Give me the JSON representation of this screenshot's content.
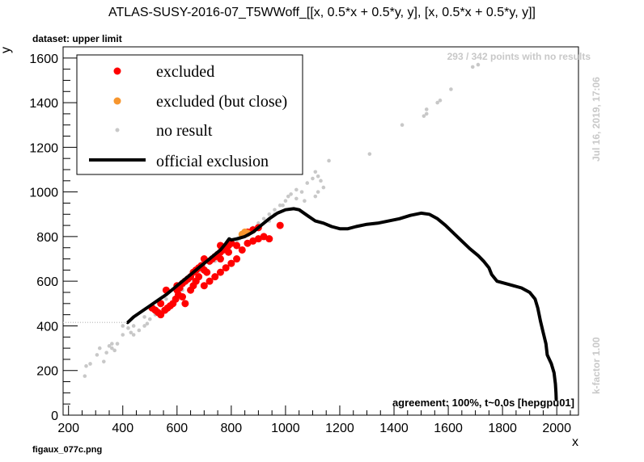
{
  "chart_data": {
    "type": "scatter",
    "title": "ATLAS-SUSY-2016-07_T5WWoff_[[x, 0.5*x + 0.5*y, y], [x, 0.5*x + 0.5*y, y]]",
    "subtitle": "dataset: upper limit",
    "xlabel": "x",
    "ylabel": "y",
    "xlim": [
      180,
      2080
    ],
    "ylim": [
      0,
      1650
    ],
    "x_ticks": [
      200,
      400,
      600,
      800,
      1000,
      1200,
      1400,
      1600,
      1800,
      2000
    ],
    "y_ticks": [
      0,
      200,
      400,
      600,
      800,
      1000,
      1200,
      1400,
      1600
    ],
    "grid": false,
    "legend_position": "top-left",
    "annotations": {
      "no_results": "293 / 342 points with no results",
      "agreement": "agreement: 100%, t~0.0s [hepgpu01]",
      "timestamp": "Jul 16, 2019, 17:06",
      "kfactor": "k-factor 1.00",
      "filename": "figaux_077c.png"
    },
    "colors": {
      "excluded": "#ff0000",
      "close": "#f7962e",
      "noresult": "#c8c8c8",
      "official": "#000000"
    },
    "series": [
      {
        "name": "excluded",
        "kind": "points",
        "points": [
          [
            508,
            480
          ],
          [
            520,
            470
          ],
          [
            530,
            460
          ],
          [
            540,
            450
          ],
          [
            555,
            470
          ],
          [
            565,
            480
          ],
          [
            575,
            490
          ],
          [
            585,
            500
          ],
          [
            595,
            520
          ],
          [
            605,
            540
          ],
          [
            540,
            500
          ],
          [
            600,
            560
          ],
          [
            610,
            570
          ],
          [
            620,
            590
          ],
          [
            630,
            600
          ],
          [
            640,
            610
          ],
          [
            650,
            620
          ],
          [
            660,
            640
          ],
          [
            670,
            650
          ],
          [
            680,
            660
          ],
          [
            690,
            670
          ],
          [
            700,
            650
          ],
          [
            710,
            640
          ],
          [
            720,
            690
          ],
          [
            730,
            700
          ],
          [
            740,
            710
          ],
          [
            750,
            720
          ],
          [
            760,
            730
          ],
          [
            770,
            740
          ],
          [
            780,
            750
          ],
          [
            790,
            760
          ],
          [
            800,
            770
          ],
          [
            650,
            560
          ],
          [
            660,
            580
          ],
          [
            670,
            600
          ],
          [
            620,
            530
          ],
          [
            630,
            500
          ],
          [
            700,
            580
          ],
          [
            720,
            600
          ],
          [
            740,
            620
          ],
          [
            760,
            640
          ],
          [
            780,
            660
          ],
          [
            800,
            680
          ],
          [
            820,
            700
          ],
          [
            840,
            740
          ],
          [
            860,
            770
          ],
          [
            880,
            780
          ],
          [
            900,
            790
          ],
          [
            920,
            800
          ],
          [
            940,
            790
          ],
          [
            860,
            820
          ],
          [
            880,
            830
          ],
          [
            900,
            840
          ],
          [
            980,
            850
          ],
          [
            700,
            700
          ],
          [
            760,
            700
          ],
          [
            790,
            730
          ],
          [
            820,
            760
          ],
          [
            760,
            760
          ],
          [
            600,
            580
          ],
          [
            560,
            560
          ],
          [
            680,
            620
          ]
        ]
      },
      {
        "name": "excluded (but close)",
        "kind": "points",
        "points": [
          [
            840,
            810
          ],
          [
            850,
            820
          ],
          [
            860,
            815
          ]
        ]
      },
      {
        "name": "no result",
        "kind": "points",
        "points": [
          [
            260,
            175
          ],
          [
            265,
            220
          ],
          [
            280,
            230
          ],
          [
            305,
            270
          ],
          [
            315,
            300
          ],
          [
            330,
            240
          ],
          [
            340,
            280
          ],
          [
            350,
            310
          ],
          [
            360,
            300
          ],
          [
            370,
            290
          ],
          [
            380,
            320
          ],
          [
            400,
            400
          ],
          [
            420,
            390
          ],
          [
            430,
            370
          ],
          [
            440,
            360
          ],
          [
            460,
            380
          ],
          [
            480,
            400
          ],
          [
            490,
            410
          ],
          [
            500,
            430
          ],
          [
            520,
            450
          ],
          [
            560,
            480
          ],
          [
            590,
            520
          ],
          [
            620,
            560
          ],
          [
            660,
            600
          ],
          [
            700,
            640
          ],
          [
            740,
            690
          ],
          [
            780,
            740
          ],
          [
            820,
            780
          ],
          [
            850,
            810
          ],
          [
            880,
            840
          ],
          [
            900,
            860
          ],
          [
            920,
            880
          ],
          [
            940,
            900
          ],
          [
            960,
            920
          ],
          [
            980,
            940
          ],
          [
            1000,
            960
          ],
          [
            1010,
            980
          ],
          [
            1020,
            990
          ],
          [
            1040,
            970
          ],
          [
            1060,
            1000
          ],
          [
            1080,
            1040
          ],
          [
            1100,
            1060
          ],
          [
            1110,
            1090
          ],
          [
            1120,
            1070
          ],
          [
            1130,
            1050
          ],
          [
            1140,
            1020
          ],
          [
            1160,
            1140
          ],
          [
            1040,
            1010
          ],
          [
            1070,
            960
          ],
          [
            1120,
            1000
          ],
          [
            1310,
            1170
          ],
          [
            1430,
            1300
          ],
          [
            1520,
            1350
          ],
          [
            1510,
            1340
          ],
          [
            1520,
            1370
          ],
          [
            1570,
            1410
          ],
          [
            1560,
            1400
          ],
          [
            1610,
            1460
          ],
          [
            1690,
            1560
          ],
          [
            1710,
            1570
          ],
          [
            1110,
            980
          ],
          [
            990,
            940
          ],
          [
            960,
            900
          ],
          [
            940,
            870
          ],
          [
            870,
            820
          ],
          [
            830,
            790
          ],
          [
            760,
            720
          ],
          [
            720,
            680
          ],
          [
            680,
            640
          ],
          [
            640,
            600
          ],
          [
            600,
            560
          ],
          [
            560,
            520
          ],
          [
            520,
            480
          ],
          [
            480,
            440
          ],
          [
            440,
            400
          ],
          [
            400,
            360
          ],
          [
            360,
            320
          ]
        ]
      },
      {
        "name": "official exclusion",
        "kind": "line",
        "points": [
          [
            418,
            415
          ],
          [
            440,
            440
          ],
          [
            470,
            465
          ],
          [
            500,
            490
          ],
          [
            530,
            515
          ],
          [
            560,
            540
          ],
          [
            590,
            570
          ],
          [
            620,
            600
          ],
          [
            650,
            630
          ],
          [
            680,
            660
          ],
          [
            710,
            690
          ],
          [
            740,
            720
          ],
          [
            760,
            740
          ],
          [
            780,
            770
          ],
          [
            792,
            790
          ],
          [
            800,
            785
          ],
          [
            820,
            790
          ],
          [
            850,
            800
          ],
          [
            880,
            820
          ],
          [
            910,
            850
          ],
          [
            940,
            880
          ],
          [
            970,
            905
          ],
          [
            1000,
            920
          ],
          [
            1030,
            925
          ],
          [
            1050,
            920
          ],
          [
            1080,
            895
          ],
          [
            1110,
            870
          ],
          [
            1140,
            860
          ],
          [
            1170,
            845
          ],
          [
            1200,
            835
          ],
          [
            1230,
            835
          ],
          [
            1260,
            845
          ],
          [
            1300,
            855
          ],
          [
            1340,
            860
          ],
          [
            1380,
            870
          ],
          [
            1420,
            880
          ],
          [
            1460,
            895
          ],
          [
            1500,
            905
          ],
          [
            1530,
            900
          ],
          [
            1560,
            880
          ],
          [
            1590,
            850
          ],
          [
            1620,
            815
          ],
          [
            1650,
            780
          ],
          [
            1680,
            745
          ],
          [
            1710,
            715
          ],
          [
            1730,
            690
          ],
          [
            1750,
            660
          ],
          [
            1760,
            630
          ],
          [
            1780,
            600
          ],
          [
            1810,
            590
          ],
          [
            1840,
            580
          ],
          [
            1870,
            570
          ],
          [
            1900,
            550
          ],
          [
            1920,
            520
          ],
          [
            1930,
            480
          ],
          [
            1940,
            420
          ],
          [
            1950,
            370
          ],
          [
            1960,
            320
          ],
          [
            1965,
            270
          ],
          [
            1980,
            230
          ],
          [
            1990,
            190
          ],
          [
            1995,
            140
          ],
          [
            1997,
            100
          ],
          [
            1998,
            70
          ]
        ]
      }
    ]
  }
}
